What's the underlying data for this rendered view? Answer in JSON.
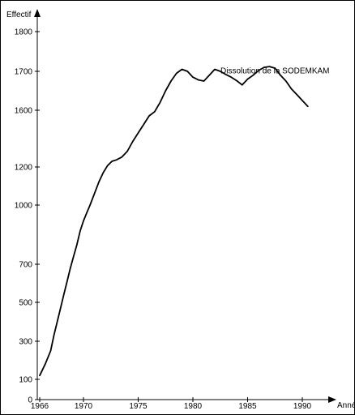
{
  "chart_data": {
    "type": "line",
    "ylabel": "Effectif",
    "xlabel": "Année",
    "yticks": [
      {
        "label": "1800",
        "value": 1800
      },
      {
        "label": "1700",
        "value": 1700
      },
      {
        "label": "1600",
        "value": 1600
      },
      {
        "label": "1200",
        "value": 1200
      },
      {
        "label": "1000",
        "value": 1000
      },
      {
        "label": "700",
        "value": 700
      },
      {
        "label": "500",
        "value": 500
      },
      {
        "label": "300",
        "value": 300
      },
      {
        "label": "100",
        "value": 100
      },
      {
        "label": "0",
        "value": 0
      }
    ],
    "xticks": [
      {
        "label": "1966",
        "value": 1966
      },
      {
        "label": "1970",
        "value": 1970
      },
      {
        "label": "1975",
        "value": 1975
      },
      {
        "label": "1980",
        "value": 1980
      },
      {
        "label": "1985",
        "value": 1985
      },
      {
        "label": "1990",
        "value": 1990
      }
    ],
    "xlim": [
      1966,
      1993
    ],
    "grid": false,
    "legend": "none",
    "annotation": {
      "text": "Dissolution de la SODEMKAM",
      "x": 1987.5,
      "y": 1695
    },
    "series": [
      {
        "color": "#000000",
        "x": [
          1966,
          1966.5,
          1967,
          1967.3,
          1967.6,
          1967.9,
          1968.2,
          1968.5,
          1968.8,
          1969.1,
          1969.4,
          1969.7,
          1970,
          1970.3,
          1970.6,
          1971,
          1971.4,
          1971.8,
          1972.2,
          1972.6,
          1973,
          1973.5,
          1974,
          1974.5,
          1975,
          1975.5,
          1976,
          1976.5,
          1977,
          1977.5,
          1978,
          1978.5,
          1979,
          1979.5,
          1980,
          1980.5,
          1981,
          1981.5,
          1982,
          1982.5,
          1983,
          1983.5,
          1984,
          1984.5,
          1985,
          1985.5,
          1986,
          1986.5,
          1987,
          1987.5,
          1988,
          1988.5,
          1989,
          1989.5,
          1990,
          1990.5
        ],
        "y": [
          120,
          180,
          250,
          330,
          400,
          470,
          540,
          610,
          680,
          740,
          800,
          870,
          920,
          960,
          1000,
          1060,
          1120,
          1170,
          1210,
          1240,
          1250,
          1270,
          1310,
          1380,
          1440,
          1500,
          1560,
          1590,
          1620,
          1650,
          1675,
          1695,
          1705,
          1700,
          1685,
          1678,
          1675,
          1690,
          1705,
          1700,
          1692,
          1685,
          1676,
          1665,
          1680,
          1690,
          1702,
          1710,
          1712,
          1708,
          1690,
          1675,
          1655,
          1640,
          1625,
          1610
        ]
      }
    ]
  }
}
